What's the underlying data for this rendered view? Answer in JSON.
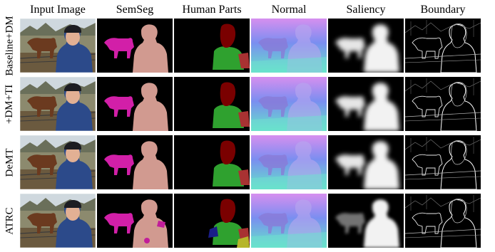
{
  "columns": [
    "Input Image",
    "SemSeg",
    "Human Parts",
    "Normal",
    "Saliency",
    "Boundary"
  ],
  "rows": [
    "Baseline+DM",
    "+DM+TI",
    "DeMT",
    "ATRC"
  ],
  "colors": {
    "horse_semseg": "#d21fa8",
    "person_semseg": "#d19a90",
    "head_part": "#7a0000",
    "torso_part": "#2fa12f",
    "arm_part": "#a83232",
    "normal_base": "#7a8ef0",
    "normal_green": "#63e6c8",
    "normal_pink": "#d68fef"
  }
}
